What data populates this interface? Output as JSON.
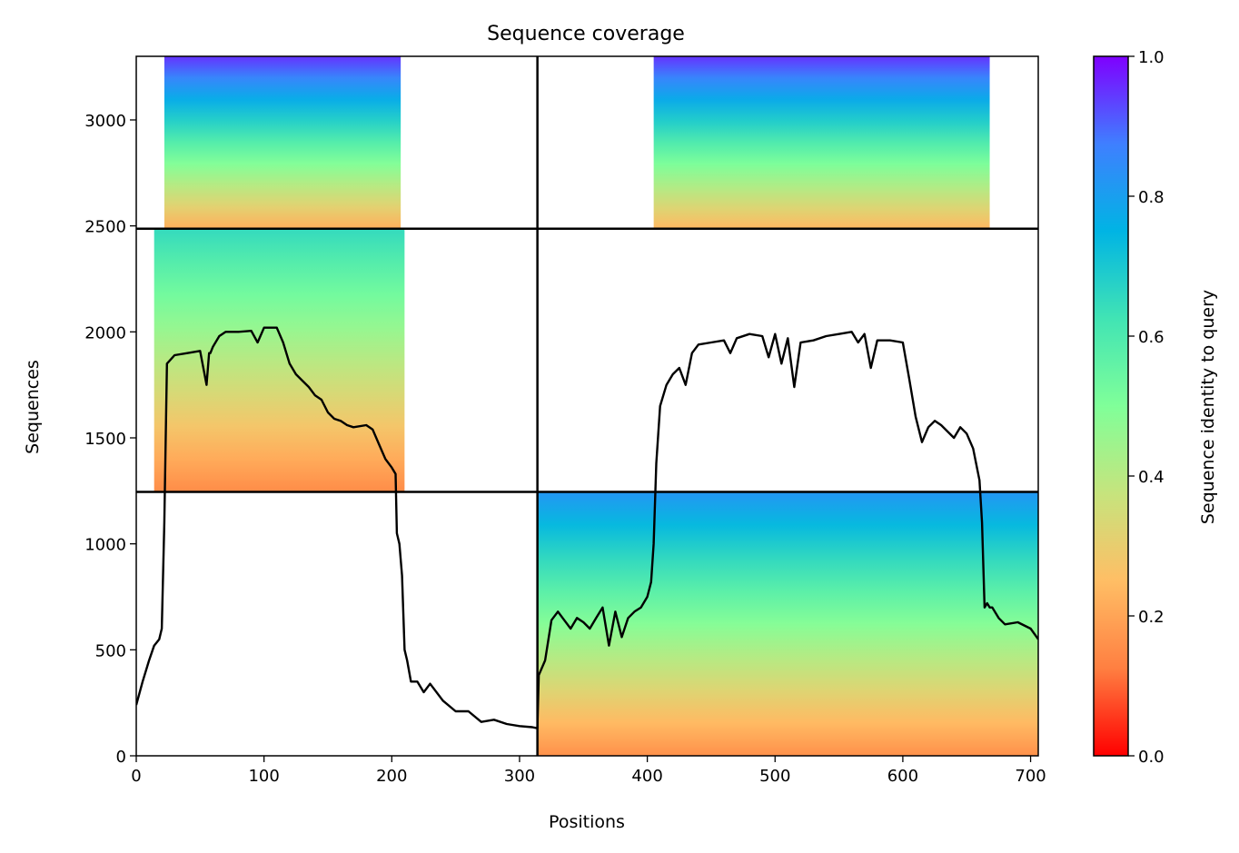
{
  "chart_data": {
    "type": "heatmap",
    "title": "Sequence coverage",
    "xlabel": "Positions",
    "ylabel": "Sequences",
    "xlim": [
      0,
      706
    ],
    "ylim": [
      0,
      3300
    ],
    "xticks": [
      0,
      100,
      200,
      300,
      400,
      500,
      600,
      700
    ],
    "yticks": [
      0,
      500,
      1000,
      1500,
      2000,
      2500,
      3000
    ],
    "divider_x": 314,
    "divider_y": [
      1245,
      2487
    ],
    "grid": false,
    "colorbar": {
      "label": "Sequence identity to query",
      "range": [
        0,
        1
      ],
      "ticks": [
        0.0,
        0.2,
        0.4,
        0.6,
        0.8,
        1.0
      ],
      "colormap": "rainbow",
      "colors": [
        "#ff0000",
        "#ff7f41",
        "#ffbe65",
        "#c6e47d",
        "#80ff99",
        "#41e4b4",
        "#00b4e4",
        "#3f7fff",
        "#7f00ff"
      ]
    },
    "coverage_blocks": [
      {
        "name": "top-left",
        "x": [
          22,
          207
        ],
        "y": [
          2487,
          3300
        ],
        "identity_bottom": 0.22,
        "identity_top": 0.95
      },
      {
        "name": "middle-left",
        "x": [
          14,
          210
        ],
        "y": [
          1245,
          2487
        ],
        "identity_bottom": 0.15,
        "identity_top": 0.65
      },
      {
        "name": "top-right",
        "x": [
          405,
          668
        ],
        "y": [
          2487,
          3300
        ],
        "identity_bottom": 0.24,
        "identity_top": 0.95
      },
      {
        "name": "bottom-right",
        "x": [
          314,
          706
        ],
        "y": [
          0,
          1245
        ],
        "identity_bottom": 0.16,
        "identity_top": 0.82
      }
    ],
    "series": [
      {
        "x": [
          0,
          5,
          10,
          14,
          18,
          20,
          22,
          24,
          30,
          40,
          50,
          55,
          57,
          58,
          60,
          65,
          70,
          80,
          90,
          95,
          100,
          110,
          115,
          120,
          125,
          130,
          135,
          140,
          145,
          150,
          155,
          160,
          165,
          170,
          180,
          185,
          190,
          195,
          200,
          203,
          204,
          206,
          208,
          210,
          212,
          215,
          220,
          225,
          230,
          240,
          250,
          260,
          270,
          280,
          290,
          300,
          310,
          314,
          315,
          320,
          325,
          330,
          335,
          340,
          345,
          350,
          355,
          360,
          365,
          370,
          375,
          380,
          385,
          390,
          395,
          400,
          403,
          405,
          407,
          410,
          415,
          420,
          425,
          430,
          435,
          440,
          450,
          460,
          465,
          470,
          480,
          490,
          495,
          500,
          505,
          510,
          515,
          520,
          530,
          540,
          550,
          560,
          565,
          570,
          575,
          580,
          590,
          600,
          605,
          610,
          615,
          620,
          625,
          630,
          640,
          645,
          650,
          655,
          660,
          662,
          664,
          666,
          668,
          670,
          675,
          680,
          690,
          700,
          706
        ],
        "values": [
          240,
          350,
          450,
          520,
          550,
          600,
          1100,
          1850,
          1890,
          1900,
          1910,
          1750,
          1900,
          1900,
          1930,
          1980,
          2000,
          2000,
          2005,
          1950,
          2020,
          2020,
          1950,
          1850,
          1800,
          1770,
          1740,
          1700,
          1680,
          1620,
          1590,
          1580,
          1560,
          1550,
          1560,
          1540,
          1470,
          1400,
          1360,
          1330,
          1050,
          1000,
          850,
          500,
          450,
          350,
          350,
          300,
          340,
          260,
          210,
          210,
          160,
          170,
          150,
          140,
          135,
          130,
          380,
          450,
          640,
          680,
          640,
          600,
          650,
          630,
          600,
          650,
          700,
          520,
          680,
          560,
          650,
          680,
          700,
          750,
          820,
          1000,
          1380,
          1650,
          1750,
          1800,
          1830,
          1750,
          1900,
          1940,
          1950,
          1960,
          1900,
          1970,
          1990,
          1980,
          1880,
          1990,
          1850,
          1970,
          1740,
          1950,
          1960,
          1980,
          1990,
          2000,
          1950,
          1990,
          1830,
          1960,
          1960,
          1950,
          1780,
          1600,
          1480,
          1550,
          1580,
          1560,
          1500,
          1550,
          1520,
          1450,
          1300,
          1100,
          700,
          720,
          700,
          700,
          650,
          620,
          630,
          600,
          550
        ]
      }
    ]
  }
}
